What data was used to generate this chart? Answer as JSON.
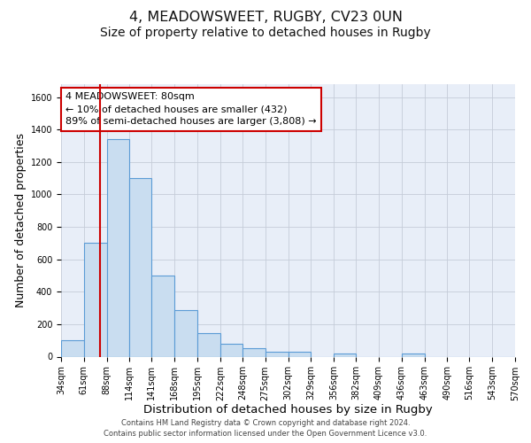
{
  "title": "4, MEADOWSWEET, RUGBY, CV23 0UN",
  "subtitle": "Size of property relative to detached houses in Rugby",
  "xlabel": "Distribution of detached houses by size in Rugby",
  "ylabel": "Number of detached properties",
  "bin_edges": [
    34,
    61,
    88,
    114,
    141,
    168,
    195,
    222,
    248,
    275,
    302,
    329,
    356,
    382,
    409,
    436,
    463,
    490,
    516,
    543,
    570
  ],
  "bar_heights": [
    100,
    700,
    1340,
    1100,
    500,
    285,
    145,
    80,
    50,
    30,
    30,
    0,
    20,
    0,
    0,
    20,
    0,
    0,
    0,
    0
  ],
  "bar_color": "#c9ddf0",
  "bar_edge_color": "#5b9bd5",
  "ylim_max": 1680,
  "yticks": [
    0,
    200,
    400,
    600,
    800,
    1000,
    1200,
    1400,
    1600
  ],
  "property_line_x": 80,
  "property_line_color": "#cc0000",
  "annotation_line1": "4 MEADOWSWEET: 80sqm",
  "annotation_line2": "← 10% of detached houses are smaller (432)",
  "annotation_line3": "89% of semi-detached houses are larger (3,808) →",
  "annotation_box_facecolor": "#ffffff",
  "annotation_box_edgecolor": "#cc0000",
  "footer_line1": "Contains HM Land Registry data © Crown copyright and database right 2024.",
  "footer_line2": "Contains public sector information licensed under the Open Government Licence v3.0.",
  "fig_facecolor": "#ffffff",
  "plot_facecolor": "#e8eef8",
  "grid_color": "#c5ccd8",
  "title_fontsize": 11.5,
  "subtitle_fontsize": 10,
  "xlabel_fontsize": 9.5,
  "ylabel_fontsize": 9,
  "tick_fontsize": 7,
  "annot_fontsize": 8,
  "footer_fontsize": 6
}
